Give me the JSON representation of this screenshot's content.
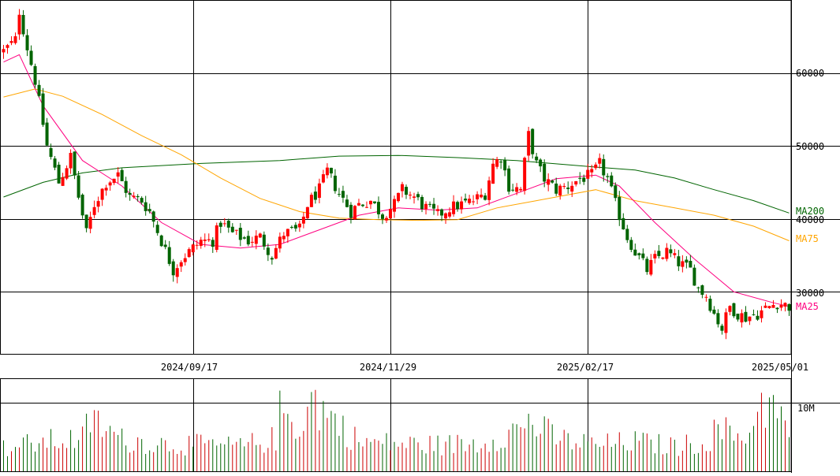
{
  "chart_data": {
    "type": "candlestick",
    "colors": {
      "up": "#ff0000",
      "down": "#006400",
      "ma25": "#ff0080",
      "ma75": "#ffa500",
      "ma200": "#006400",
      "grid": "#000000",
      "volume_up": "#cc0000",
      "volume_down": "#006400"
    },
    "price_axis": {
      "ticks": [
        60000,
        50000,
        40000,
        30000
      ],
      "tick_labels": [
        "60000",
        "50000",
        "40000",
        "30000"
      ],
      "ylim": [
        21500,
        70000
      ]
    },
    "volume_axis": {
      "ticks": [
        10000000
      ],
      "tick_labels": [
        "10M"
      ],
      "ylim": [
        0,
        13500000
      ]
    },
    "x_axis": {
      "date_labels": [
        "2024/09/17",
        "2024/11/29",
        "2025/02/17",
        "2025/05/01"
      ],
      "total_days": 200
    },
    "legend": [
      {
        "name": "MA200",
        "color": "#006400",
        "value": 41000
      },
      {
        "name": "MA75",
        "color": "#ffa500",
        "value": 37000
      },
      {
        "name": "MA25",
        "color": "#ff0080",
        "value": 28000
      }
    ],
    "ohlc_anchors": [
      [
        0,
        63000
      ],
      [
        3,
        64500
      ],
      [
        4,
        68500
      ],
      [
        6,
        63500
      ],
      [
        8,
        59000
      ],
      [
        9,
        56000
      ],
      [
        11,
        50000
      ],
      [
        14,
        45000
      ],
      [
        17,
        48500
      ],
      [
        19,
        43000
      ],
      [
        21,
        38000
      ],
      [
        23,
        42000
      ],
      [
        26,
        45000
      ],
      [
        29,
        46000
      ],
      [
        32,
        43000
      ],
      [
        35,
        42500
      ],
      [
        37,
        41000
      ],
      [
        40,
        37000
      ],
      [
        43,
        33000
      ],
      [
        45,
        34500
      ],
      [
        48,
        36000
      ],
      [
        50,
        37000
      ],
      [
        53,
        37000
      ],
      [
        55,
        39500
      ],
      [
        58,
        38000
      ],
      [
        62,
        37000
      ],
      [
        65,
        37500
      ],
      [
        68,
        35000
      ],
      [
        71,
        38000
      ],
      [
        75,
        38500
      ],
      [
        77,
        42000
      ],
      [
        80,
        44000
      ],
      [
        82,
        46500
      ],
      [
        85,
        43500
      ],
      [
        88,
        41000
      ],
      [
        90,
        42000
      ],
      [
        93,
        42500
      ],
      [
        96,
        40500
      ],
      [
        99,
        42000
      ],
      [
        101,
        44000
      ],
      [
        104,
        43000
      ],
      [
        107,
        41500
      ],
      [
        110,
        40500
      ],
      [
        113,
        41500
      ],
      [
        116,
        42000
      ],
      [
        119,
        42500
      ],
      [
        122,
        43500
      ],
      [
        124,
        47500
      ],
      [
        126,
        48500
      ],
      [
        128,
        44500
      ],
      [
        131,
        44000
      ],
      [
        133,
        51500
      ],
      [
        135,
        47500
      ],
      [
        137,
        45500
      ],
      [
        140,
        44000
      ],
      [
        143,
        44500
      ],
      [
        146,
        45500
      ],
      [
        149,
        46000
      ],
      [
        151,
        47500
      ],
      [
        153,
        45500
      ],
      [
        155,
        42000
      ],
      [
        158,
        37500
      ],
      [
        160,
        35500
      ],
      [
        163,
        33000
      ],
      [
        165,
        34500
      ],
      [
        168,
        35500
      ],
      [
        171,
        34000
      ],
      [
        174,
        33000
      ],
      [
        176,
        30500
      ],
      [
        178,
        29500
      ],
      [
        180,
        27000
      ],
      [
        182,
        25000
      ],
      [
        184,
        28000
      ],
      [
        186,
        27000
      ],
      [
        188,
        26500
      ],
      [
        191,
        27000
      ],
      [
        194,
        28000
      ],
      [
        196,
        28500
      ],
      [
        199,
        28000
      ]
    ],
    "ma25_points": [
      [
        0,
        61500
      ],
      [
        4,
        62500
      ],
      [
        10,
        55500
      ],
      [
        20,
        48000
      ],
      [
        30,
        44500
      ],
      [
        40,
        39500
      ],
      [
        50,
        36500
      ],
      [
        60,
        36000
      ],
      [
        70,
        36500
      ],
      [
        80,
        38500
      ],
      [
        90,
        40500
      ],
      [
        100,
        41500
      ],
      [
        110,
        41200
      ],
      [
        120,
        41500
      ],
      [
        130,
        43500
      ],
      [
        140,
        45500
      ],
      [
        150,
        46000
      ],
      [
        156,
        44500
      ],
      [
        165,
        39500
      ],
      [
        175,
        34500
      ],
      [
        185,
        30000
      ],
      [
        195,
        28500
      ],
      [
        199,
        28000
      ]
    ],
    "ma75_points": [
      [
        0,
        56700
      ],
      [
        8,
        57800
      ],
      [
        15,
        56800
      ],
      [
        25,
        54300
      ],
      [
        35,
        51400
      ],
      [
        45,
        48800
      ],
      [
        55,
        45600
      ],
      [
        65,
        42800
      ],
      [
        75,
        41000
      ],
      [
        85,
        40100
      ],
      [
        95,
        39900
      ],
      [
        105,
        39800
      ],
      [
        115,
        39900
      ],
      [
        125,
        41500
      ],
      [
        135,
        42500
      ],
      [
        150,
        44000
      ],
      [
        160,
        42500
      ],
      [
        170,
        41500
      ],
      [
        180,
        40500
      ],
      [
        190,
        39000
      ],
      [
        199,
        37000
      ]
    ],
    "ma200_points": [
      [
        0,
        43000
      ],
      [
        10,
        45000
      ],
      [
        20,
        46300
      ],
      [
        30,
        47000
      ],
      [
        50,
        47600
      ],
      [
        70,
        48000
      ],
      [
        85,
        48600
      ],
      [
        100,
        48700
      ],
      [
        115,
        48400
      ],
      [
        130,
        48000
      ],
      [
        150,
        47100
      ],
      [
        160,
        46700
      ],
      [
        170,
        45600
      ],
      [
        180,
        44000
      ],
      [
        190,
        42500
      ],
      [
        199,
        40800
      ]
    ],
    "volume_anchors": [
      [
        0,
        3500000
      ],
      [
        10,
        4500000
      ],
      [
        20,
        5000000
      ],
      [
        22,
        8000000
      ],
      [
        30,
        4800000
      ],
      [
        40,
        4200000
      ],
      [
        50,
        4000000
      ],
      [
        60,
        3800000
      ],
      [
        69,
        5000000
      ],
      [
        70,
        9000000
      ],
      [
        75,
        7000000
      ],
      [
        78,
        11000000
      ],
      [
        90,
        4500000
      ],
      [
        100,
        4200000
      ],
      [
        110,
        4000000
      ],
      [
        120,
        4300000
      ],
      [
        131,
        6500000
      ],
      [
        132,
        8000000
      ],
      [
        140,
        5000000
      ],
      [
        150,
        4000000
      ],
      [
        160,
        4500000
      ],
      [
        170,
        3800000
      ],
      [
        178,
        4500000
      ],
      [
        181,
        6500000
      ],
      [
        185,
        5500000
      ],
      [
        190,
        6000000
      ],
      [
        191,
        13000000
      ],
      [
        194,
        9000000
      ],
      [
        195,
        10500000
      ],
      [
        196,
        8000000
      ],
      [
        199,
        6500000
      ]
    ]
  }
}
